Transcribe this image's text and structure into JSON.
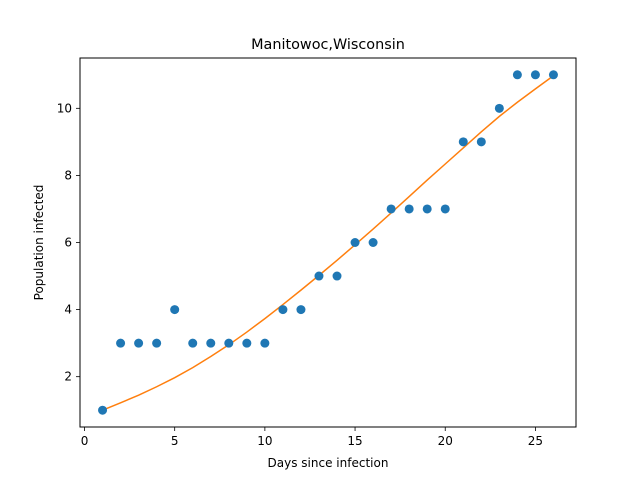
{
  "chart_data": {
    "type": "scatter",
    "title": "Manitowoc,Wisconsin",
    "xlabel": "Days since infection",
    "ylabel": "Population infected",
    "xlim": [
      -0.25,
      27.25
    ],
    "ylim": [
      0.5,
      11.5
    ],
    "xticks": [
      0,
      5,
      10,
      15,
      20,
      25
    ],
    "yticks": [
      2,
      4,
      6,
      8,
      10
    ],
    "grid": false,
    "series": [
      {
        "type": "scatter",
        "color": "#1f77b4",
        "x": [
          1,
          2,
          3,
          4,
          5,
          6,
          7,
          8,
          9,
          10,
          11,
          12,
          13,
          14,
          15,
          16,
          17,
          18,
          19,
          20,
          21,
          22,
          23,
          24,
          25,
          26
        ],
        "y": [
          1,
          3,
          3,
          3,
          4,
          3,
          3,
          3,
          3,
          3,
          4,
          4,
          5,
          5,
          6,
          6,
          7,
          7,
          7,
          7,
          9,
          9,
          10,
          11,
          11,
          11
        ]
      },
      {
        "type": "line",
        "color": "#ff7f0e",
        "x": [
          1,
          2,
          3,
          4,
          5,
          6,
          7,
          8,
          9,
          10,
          11,
          12,
          13,
          14,
          15,
          16,
          17,
          18,
          19,
          20,
          21,
          22,
          23,
          24,
          25,
          26
        ],
        "y": [
          1.0,
          1.22,
          1.45,
          1.7,
          1.97,
          2.27,
          2.6,
          2.95,
          3.33,
          3.73,
          4.15,
          4.58,
          5.02,
          5.47,
          5.93,
          6.4,
          6.88,
          7.37,
          7.86,
          8.34,
          8.82,
          9.3,
          9.76,
          10.18,
          10.58,
          10.97
        ]
      }
    ]
  }
}
